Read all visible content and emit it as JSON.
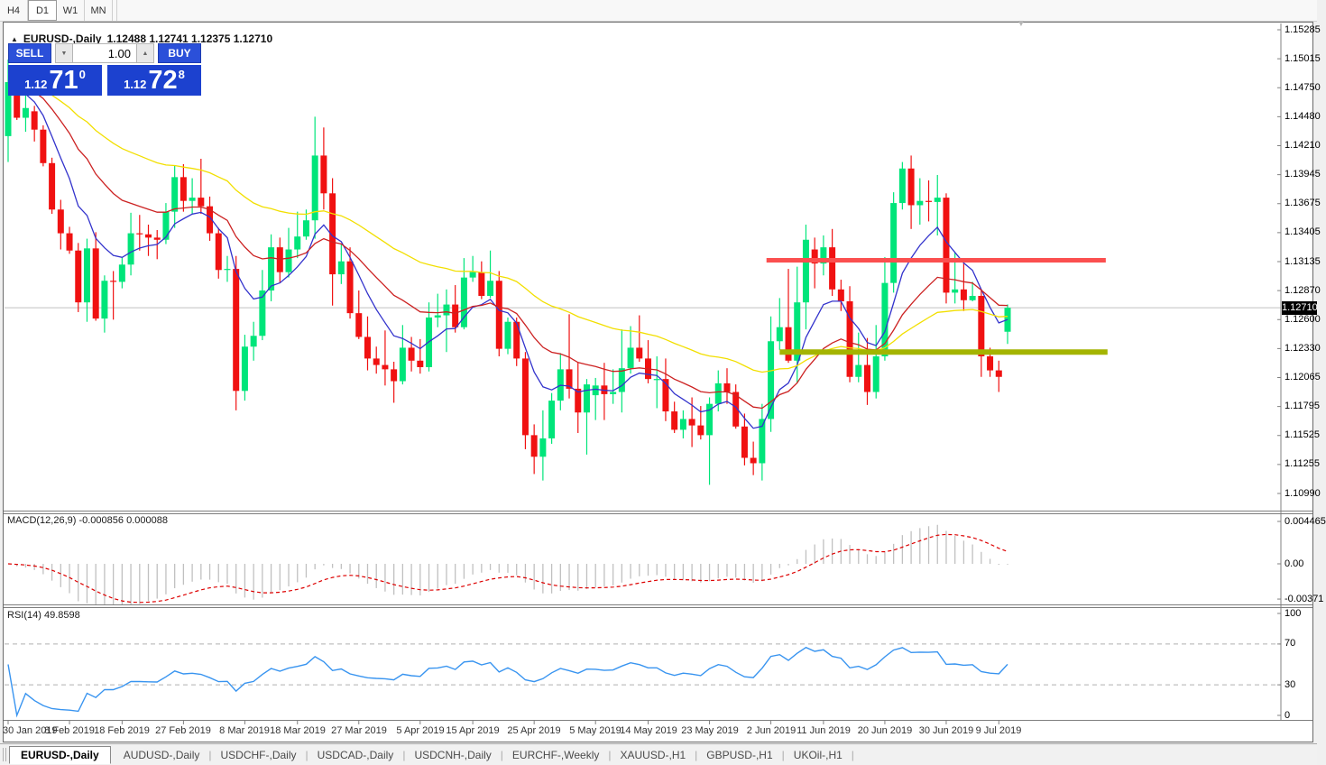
{
  "toolbar": {
    "timeframes": [
      {
        "label": "H4",
        "active": false
      },
      {
        "label": "D1",
        "active": true
      },
      {
        "label": "W1",
        "active": false
      },
      {
        "label": "MN",
        "active": false
      }
    ]
  },
  "window": {
    "title_symbol": "EURUSD-,Daily",
    "title_ohlc": "1.12488 1.12741 1.12375 1.12710"
  },
  "trade_panel": {
    "sell_label": "SELL",
    "buy_label": "BUY",
    "volume": "1.00",
    "sell_price": {
      "small": "1.12",
      "big": "71",
      "sup": "0"
    },
    "buy_price": {
      "small": "1.12",
      "big": "72",
      "sup": "8"
    }
  },
  "chart_data": {
    "type": "candlestick",
    "symbol": "EURUSD",
    "timeframe": "Daily",
    "last_bar": {
      "open": 1.12488,
      "high": 1.12741,
      "low": 1.12375,
      "close": 1.1271
    },
    "current_price": "1.12710",
    "price_axis": {
      "top": 1.15285,
      "bottom": 1.1099,
      "ticks": [
        "1.15285",
        "1.15015",
        "1.14750",
        "1.14480",
        "1.14210",
        "1.13945",
        "1.13675",
        "1.13405",
        "1.13135",
        "1.12870",
        "1.12600",
        "1.12330",
        "1.12065",
        "1.11795",
        "1.11525",
        "1.11255",
        "1.10990"
      ]
    },
    "date_axis": {
      "labels": [
        "30 Jan 2019",
        "8 Feb 2019",
        "18 Feb 2019",
        "27 Feb 2019",
        "8 Mar 2019",
        "18 Mar 2019",
        "27 Mar 2019",
        "5 Apr 2019",
        "15 Apr 2019",
        "25 Apr 2019",
        "5 May 2019",
        "14 May 2019",
        "23 May 2019",
        "2 Jun 2019",
        "11 Jun 2019",
        "20 Jun 2019",
        "30 Jun 2019",
        "9 Jul 2019"
      ],
      "indices": [
        0,
        7,
        13,
        20,
        27,
        33,
        40,
        47,
        53,
        60,
        67,
        73,
        80,
        87,
        93,
        100,
        107,
        113
      ]
    },
    "candles": [
      [
        1.143,
        1.1501,
        1.1406,
        1.148
      ],
      [
        1.148,
        1.1489,
        1.1445,
        1.1447
      ],
      [
        1.1447,
        1.1487,
        1.1434,
        1.1456
      ],
      [
        1.1453,
        1.1458,
        1.1425,
        1.1436
      ],
      [
        1.1436,
        1.144,
        1.1402,
        1.1405
      ],
      [
        1.1405,
        1.141,
        1.1358,
        1.1362
      ],
      [
        1.1362,
        1.1371,
        1.1325,
        1.134
      ],
      [
        1.134,
        1.1346,
        1.1321,
        1.1324
      ],
      [
        1.1324,
        1.1331,
        1.1267,
        1.1276
      ],
      [
        1.1276,
        1.1335,
        1.1258,
        1.1326
      ],
      [
        1.1326,
        1.1341,
        1.1259,
        1.1261
      ],
      [
        1.1261,
        1.1301,
        1.1248,
        1.1296
      ],
      [
        1.1296,
        1.1305,
        1.126,
        1.1295
      ],
      [
        1.1295,
        1.1318,
        1.1289,
        1.1311
      ],
      [
        1.1311,
        1.1359,
        1.1301,
        1.134
      ],
      [
        1.134,
        1.1357,
        1.1324,
        1.1339
      ],
      [
        1.1339,
        1.1348,
        1.1319,
        1.1336
      ],
      [
        1.1336,
        1.1343,
        1.1316,
        1.1334
      ],
      [
        1.1334,
        1.1368,
        1.133,
        1.136
      ],
      [
        1.136,
        1.1403,
        1.1345,
        1.1392
      ],
      [
        1.1392,
        1.1404,
        1.136,
        1.137
      ],
      [
        1.137,
        1.1391,
        1.1358,
        1.1373
      ],
      [
        1.1373,
        1.1409,
        1.1358,
        1.1365
      ],
      [
        1.1365,
        1.1374,
        1.1333,
        1.134
      ],
      [
        1.134,
        1.1345,
        1.1298,
        1.1306
      ],
      [
        1.1306,
        1.1319,
        1.1295,
        1.1307
      ],
      [
        1.1307,
        1.1319,
        1.1176,
        1.1194
      ],
      [
        1.1194,
        1.1246,
        1.1185,
        1.1235
      ],
      [
        1.1235,
        1.1258,
        1.1222,
        1.1245
      ],
      [
        1.1245,
        1.1306,
        1.1241,
        1.1287
      ],
      [
        1.1287,
        1.1339,
        1.1277,
        1.1327
      ],
      [
        1.1327,
        1.1336,
        1.1294,
        1.1304
      ],
      [
        1.1304,
        1.1345,
        1.1299,
        1.1325
      ],
      [
        1.1325,
        1.136,
        1.1317,
        1.1337
      ],
      [
        1.1337,
        1.1362,
        1.1334,
        1.1352
      ],
      [
        1.1352,
        1.1448,
        1.1335,
        1.1412
      ],
      [
        1.1412,
        1.1438,
        1.1362,
        1.1377
      ],
      [
        1.1377,
        1.1391,
        1.1273,
        1.1302
      ],
      [
        1.1302,
        1.133,
        1.1293,
        1.1314
      ],
      [
        1.1314,
        1.1327,
        1.1261,
        1.1266
      ],
      [
        1.1266,
        1.1287,
        1.1242,
        1.1244
      ],
      [
        1.1244,
        1.1263,
        1.1213,
        1.1224
      ],
      [
        1.1224,
        1.1235,
        1.121,
        1.1218
      ],
      [
        1.1218,
        1.125,
        1.1199,
        1.1214
      ],
      [
        1.1214,
        1.1221,
        1.1183,
        1.1203
      ],
      [
        1.1203,
        1.1255,
        1.12,
        1.1234
      ],
      [
        1.1234,
        1.1244,
        1.1212,
        1.1222
      ],
      [
        1.1222,
        1.1242,
        1.121,
        1.1216
      ],
      [
        1.1216,
        1.1276,
        1.1212,
        1.1262
      ],
      [
        1.1262,
        1.1284,
        1.1253,
        1.1264
      ],
      [
        1.1264,
        1.1288,
        1.123,
        1.1274
      ],
      [
        1.1274,
        1.1292,
        1.1248,
        1.1253
      ],
      [
        1.1253,
        1.1317,
        1.1251,
        1.1299
      ],
      [
        1.1299,
        1.1319,
        1.1295,
        1.1304
      ],
      [
        1.1304,
        1.1314,
        1.1279,
        1.1282
      ],
      [
        1.1282,
        1.1324,
        1.128,
        1.1296
      ],
      [
        1.1296,
        1.1305,
        1.1226,
        1.1233
      ],
      [
        1.1233,
        1.1262,
        1.1228,
        1.1258
      ],
      [
        1.1258,
        1.1262,
        1.1217,
        1.1224
      ],
      [
        1.1224,
        1.123,
        1.114,
        1.1153
      ],
      [
        1.1153,
        1.1163,
        1.1117,
        1.1133
      ],
      [
        1.1133,
        1.1176,
        1.1111,
        1.115
      ],
      [
        1.115,
        1.1192,
        1.1145,
        1.1185
      ],
      [
        1.1185,
        1.1229,
        1.1176,
        1.1214
      ],
      [
        1.1214,
        1.1265,
        1.1187,
        1.1196
      ],
      [
        1.1196,
        1.122,
        1.1155,
        1.1174
      ],
      [
        1.1174,
        1.1205,
        1.1135,
        1.12
      ],
      [
        1.119,
        1.1206,
        1.1167,
        1.1199
      ],
      [
        1.1199,
        1.122,
        1.1167,
        1.1191
      ],
      [
        1.1191,
        1.1214,
        1.1182,
        1.1193
      ],
      [
        1.1193,
        1.1251,
        1.1174,
        1.1215
      ],
      [
        1.1215,
        1.1254,
        1.121,
        1.1234
      ],
      [
        1.1234,
        1.1264,
        1.1221,
        1.1224
      ],
      [
        1.1224,
        1.1241,
        1.1201,
        1.1205
      ],
      [
        1.1205,
        1.1226,
        1.1178,
        1.1205
      ],
      [
        1.1205,
        1.1224,
        1.1166,
        1.1175
      ],
      [
        1.1175,
        1.1184,
        1.1155,
        1.1158
      ],
      [
        1.1158,
        1.1176,
        1.115,
        1.1168
      ],
      [
        1.1168,
        1.1188,
        1.1142,
        1.1162
      ],
      [
        1.1162,
        1.118,
        1.1149,
        1.1153
      ],
      [
        1.1153,
        1.1188,
        1.1107,
        1.1182
      ],
      [
        1.1182,
        1.1213,
        1.1175,
        1.1201
      ],
      [
        1.1201,
        1.1215,
        1.1182,
        1.1193
      ],
      [
        1.1193,
        1.12,
        1.1159,
        1.1161
      ],
      [
        1.1161,
        1.1173,
        1.1125,
        1.1132
      ],
      [
        1.1132,
        1.1147,
        1.1116,
        1.1127
      ],
      [
        1.1127,
        1.1182,
        1.1111,
        1.1168
      ],
      [
        1.1168,
        1.1263,
        1.1156,
        1.124
      ],
      [
        1.124,
        1.128,
        1.1232,
        1.1253
      ],
      [
        1.1253,
        1.1307,
        1.122,
        1.1222
      ],
      [
        1.1222,
        1.1309,
        1.1201,
        1.1276
      ],
      [
        1.1276,
        1.1348,
        1.1251,
        1.1334
      ],
      [
        1.1325,
        1.1336,
        1.1289,
        1.1312
      ],
      [
        1.1312,
        1.1338,
        1.1301,
        1.1327
      ],
      [
        1.1327,
        1.1344,
        1.1282,
        1.1288
      ],
      [
        1.1288,
        1.1297,
        1.1268,
        1.1277
      ],
      [
        1.1277,
        1.1291,
        1.1202,
        1.1207
      ],
      [
        1.1207,
        1.1248,
        1.1202,
        1.1218
      ],
      [
        1.1218,
        1.1243,
        1.1181,
        1.1193
      ],
      [
        1.1193,
        1.1255,
        1.1187,
        1.1226
      ],
      [
        1.1226,
        1.1318,
        1.1222,
        1.1294
      ],
      [
        1.1294,
        1.1378,
        1.1285,
        1.1368
      ],
      [
        1.1368,
        1.1406,
        1.1362,
        1.14
      ],
      [
        1.14,
        1.1412,
        1.1344,
        1.1366
      ],
      [
        1.1366,
        1.1391,
        1.1348,
        1.137
      ],
      [
        1.137,
        1.1389,
        1.1351,
        1.1369
      ],
      [
        1.1369,
        1.1394,
        1.1338,
        1.1373
      ],
      [
        1.1373,
        1.1377,
        1.1275,
        1.1285
      ],
      [
        1.1285,
        1.1322,
        1.1275,
        1.1288
      ],
      [
        1.1288,
        1.1312,
        1.1268,
        1.1278
      ],
      [
        1.1278,
        1.1295,
        1.1277,
        1.1282
      ],
      [
        1.1282,
        1.1288,
        1.1207,
        1.1226
      ],
      [
        1.1226,
        1.1234,
        1.1207,
        1.1213
      ],
      [
        1.1213,
        1.1222,
        1.1193,
        1.1207
      ],
      [
        1.12488,
        1.12741,
        1.12375,
        1.1271
      ]
    ],
    "moving_averages": [
      {
        "name": "fast",
        "method": "ema",
        "period": 8,
        "color_key": "ma_fast"
      },
      {
        "name": "mid",
        "method": "ema",
        "period": 20,
        "color_key": "ma_mid"
      },
      {
        "name": "slow",
        "method": "ema",
        "period": 45,
        "color_key": "ma_slow"
      }
    ],
    "levels": {
      "resistance": {
        "price": 1.1315,
        "i1": 86.5,
        "i2": 125.2
      },
      "support": {
        "price": 1.123,
        "i1": 88.0,
        "i2": 125.4
      }
    },
    "macd": {
      "display": "MACD(12,26,9) -0.000856 0.000088",
      "fast": 12,
      "slow": 26,
      "signal": 9,
      "ticks": [
        {
          "v": 0.004465,
          "text": "0.004465"
        },
        {
          "v": 0,
          "text": "0.00"
        },
        {
          "v": -0.00371,
          "text": "-0.00371"
        }
      ]
    },
    "rsi": {
      "display": "RSI(14) 49.8598",
      "period": 14,
      "levels": [
        70,
        30
      ],
      "ticks": [
        {
          "v": 100,
          "text": "100"
        },
        {
          "v": 70,
          "text": "70"
        },
        {
          "v": 30,
          "text": "30"
        },
        {
          "v": 0,
          "text": "0"
        }
      ]
    }
  },
  "tabs": {
    "items": [
      {
        "label": "EURUSD-,Daily",
        "active": true
      },
      {
        "label": "AUDUSD-,Daily",
        "active": false
      },
      {
        "label": "USDCHF-,Daily",
        "active": false
      },
      {
        "label": "USDCAD-,Daily",
        "active": false
      },
      {
        "label": "USDCNH-,Daily",
        "active": false
      },
      {
        "label": "EURCHF-,Weekly",
        "active": false
      },
      {
        "label": "XAUUSD-,H1",
        "active": false
      },
      {
        "label": "GBPUSD-,H1",
        "active": false
      },
      {
        "label": "UKOil-,H1",
        "active": false
      }
    ]
  },
  "icons": {
    "panel_toggle": "▲",
    "scroll_marker": "▼",
    "spin_down": "▼",
    "spin_up": "▲",
    "tab_separator": "|"
  },
  "colors": {
    "bull": "#00e57a",
    "bear": "#f01111",
    "ma_fast": "#3333cc",
    "ma_mid": "#cc2222",
    "ma_slow": "#f2df00",
    "macd_bar": "#c0c0c0",
    "macd_signal": "#dd0000",
    "rsi_line": "#3894f0",
    "level_resistance": "#fb4f4f",
    "level_support": "#a4b400",
    "price_line": "#c0c0c0",
    "tag_bg": "#000000",
    "axis_line": "#808080"
  }
}
